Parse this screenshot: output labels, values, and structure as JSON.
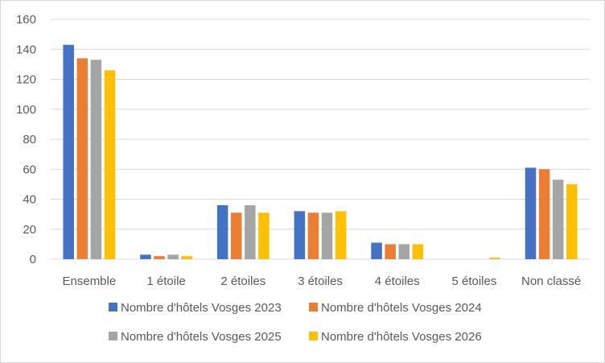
{
  "chart_data": {
    "type": "bar",
    "categories": [
      "Ensemble",
      "1 étoile",
      "2 étoiles",
      "3 étoiles",
      "4 étoiles",
      "5 étoiles",
      "Non classé"
    ],
    "series": [
      {
        "name": "Nombre d'hôtels Vosges 2023",
        "color": "#4472c4",
        "values": [
          143,
          3,
          36,
          32,
          11,
          0,
          61
        ]
      },
      {
        "name": "Nombre d'hôtels Vosges 2024",
        "color": "#ed7d31",
        "values": [
          134,
          2,
          31,
          31,
          10,
          0,
          60
        ]
      },
      {
        "name": "Nombre d'hôtels Vosges 2025",
        "color": "#a5a5a5",
        "values": [
          133,
          3,
          36,
          31,
          10,
          0,
          53
        ]
      },
      {
        "name": "Nombre d'hôtels Vosges 2026",
        "color": "#ffc000",
        "values": [
          126,
          2,
          31,
          32,
          10,
          1,
          50
        ]
      }
    ],
    "yticks": [
      0,
      20,
      40,
      60,
      80,
      100,
      120,
      140,
      160
    ],
    "ylim": [
      0,
      160
    ],
    "grid": true,
    "legend_position": "bottom"
  }
}
